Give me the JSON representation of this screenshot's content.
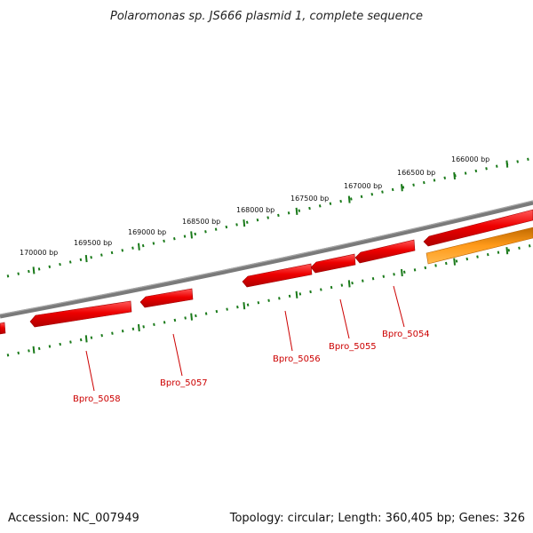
{
  "title": "Polaromonas sp. JS666 plasmid 1, complete sequence",
  "footer": {
    "accession": "Accession: NC_007949",
    "summary": "Topology: circular; Length: 360,405 bp; Genes: 326"
  },
  "colors": {
    "backbone": "#7f7f7f",
    "tick": "#1a7a1a",
    "gene_forward": "#e00000",
    "gene_reverse": "#f08c00",
    "label": "#cc0000"
  },
  "ticks": [
    {
      "text": "166000 bp"
    },
    {
      "text": "166500 bp"
    },
    {
      "text": "167000 bp"
    },
    {
      "text": "167500 bp"
    },
    {
      "text": "168000 bp"
    },
    {
      "text": "168500 bp"
    },
    {
      "text": "169000 bp"
    },
    {
      "text": "169500 bp"
    },
    {
      "text": "170000 bp"
    }
  ],
  "genes": [
    {
      "name": "Bpro_5054",
      "strand": "-"
    },
    {
      "name": "Bpro_5055",
      "strand": "-"
    },
    {
      "name": "Bpro_5056",
      "strand": "-"
    },
    {
      "name": "Bpro_5057",
      "strand": "-"
    },
    {
      "name": "Bpro_5058",
      "strand": "-"
    },
    {
      "name": "",
      "strand": "+"
    }
  ]
}
